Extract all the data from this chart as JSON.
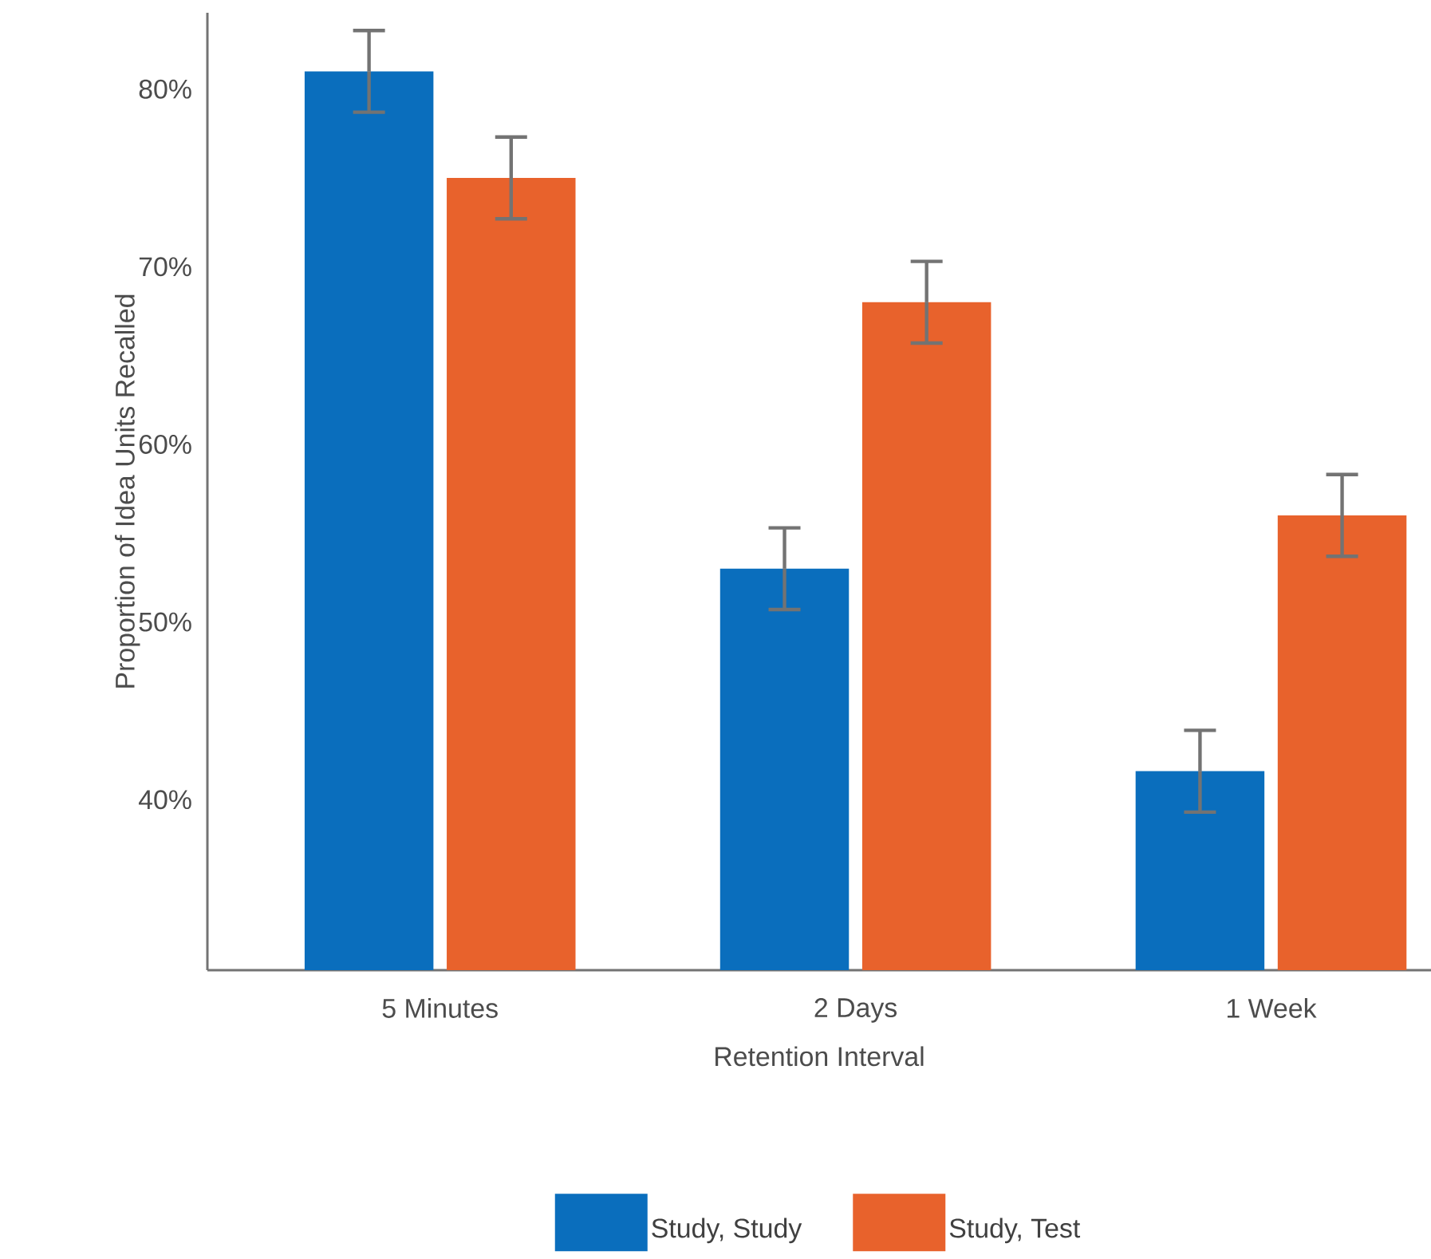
{
  "chart_data": {
    "type": "bar",
    "xlabel": "Retention Interval",
    "ylabel": "Proportion of Idea Units Recalled",
    "categories": [
      "5 Minutes",
      "2 Days",
      "1 Week"
    ],
    "series": [
      {
        "name": "Study, Study",
        "color": "#0a6ebd",
        "values": [
          81,
          53,
          41.6
        ],
        "errors": [
          2.3,
          2.3,
          2.3
        ]
      },
      {
        "name": "Study, Test",
        "color": "#e8622c",
        "values": [
          75,
          68,
          56
        ],
        "errors": [
          2.3,
          2.3,
          2.3
        ]
      }
    ],
    "ylim": [
      30.4,
      84.3
    ],
    "yticks": [
      {
        "value": 40,
        "label": "40%"
      },
      {
        "value": 50,
        "label": "50%"
      },
      {
        "value": 60,
        "label": "60%"
      },
      {
        "value": 70,
        "label": "70%"
      },
      {
        "value": 80,
        "label": "80%"
      }
    ],
    "grid": false,
    "legend": "bottom"
  }
}
